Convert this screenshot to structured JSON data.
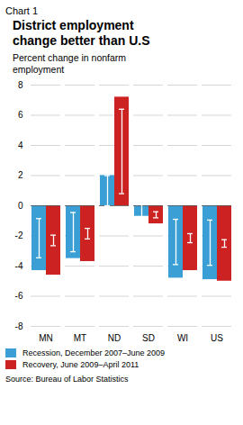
{
  "chart_data": {
    "type": "bar",
    "title": "District employment\nchange better than U.S",
    "subtitle": "Percent change in nonfarm\nemployment",
    "annotations": [
      "Chart 1",
      "Source: Bureau of Labor Statistics"
    ],
    "categories": [
      "MN",
      "MT",
      "ND",
      "SD",
      "WI",
      "US"
    ],
    "series": [
      {
        "name": "Recession, December 2007–June 2009",
        "color": "#3A9FD4",
        "values": [
          -4.3,
          -3.5,
          2.0,
          -0.7,
          -4.8,
          -4.9
        ],
        "errors": [
          1.3,
          1.3,
          1.0,
          0.55,
          1.5,
          1.5
        ]
      },
      {
        "name": "Recovery, June 2009–April 2011",
        "color": "#CC2222",
        "values": [
          -4.6,
          -3.7,
          7.2,
          -1.2,
          -4.3,
          -5.0
        ],
        "errors": [
          0.35,
          0.35,
          2.8,
          0.2,
          0.3,
          0.25
        ]
      }
    ],
    "ylim": [
      -8,
      8
    ],
    "yticks": [
      -8,
      -6,
      -4,
      -2,
      0,
      2,
      4,
      6,
      8
    ],
    "grid": true,
    "legend": "bottom"
  }
}
